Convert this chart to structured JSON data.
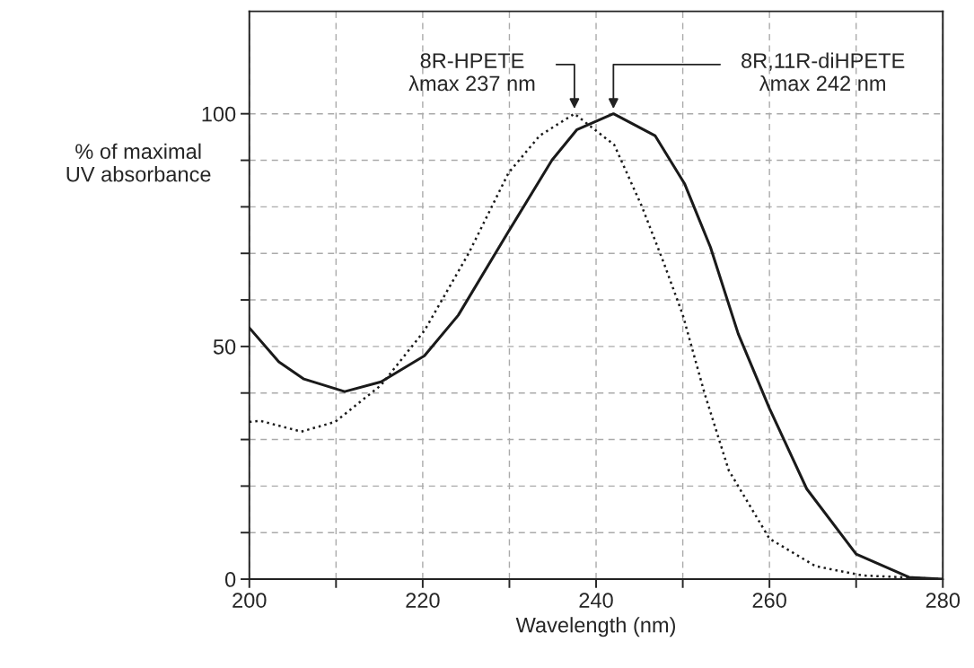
{
  "chart_data": {
    "type": "line",
    "xlabel": "Wavelength (nm)",
    "ylabel": "% of maximal\nUV absorbance",
    "xlim": [
      200,
      280
    ],
    "ylim": [
      0,
      122
    ],
    "xticks": [
      200,
      {
        "value": 210,
        "label": null
      },
      220,
      {
        "value": 230,
        "label": null
      },
      240,
      {
        "value": 250,
        "label": null
      },
      260,
      {
        "value": 270,
        "label": null
      },
      280
    ],
    "yticks": [
      0,
      {
        "value": 10,
        "label": null
      },
      {
        "value": 20,
        "label": null
      },
      {
        "value": 30,
        "label": null
      },
      {
        "value": 40,
        "label": null
      },
      50,
      {
        "value": 60,
        "label": null
      },
      {
        "value": 70,
        "label": null
      },
      {
        "value": 80,
        "label": null
      },
      {
        "value": 90,
        "label": null
      },
      100
    ],
    "grid": true,
    "legend": false,
    "series": [
      {
        "color": "#1a1a1a",
        "line_style": "solid",
        "x": [
          200,
          203.4,
          206.3,
          211,
          215.2,
          220.2,
          224.1,
          229.9,
          234.9,
          237.8,
          242,
          246.8,
          250.2,
          253.2,
          256.4,
          260,
          264.3,
          270,
          276.1,
          280
        ],
        "values": [
          54,
          46.7,
          43,
          40.3,
          42.4,
          48,
          56.7,
          74.7,
          90,
          96.6,
          100,
          95.3,
          85,
          71.3,
          52.7,
          36.7,
          19.4,
          5.4,
          0.4,
          0
        ]
      },
      {
        "color": "#1a1a1a",
        "line_style": "dotted",
        "x": [
          200,
          201.3,
          206,
          209.9,
          215.2,
          220.2,
          225.3,
          229.9,
          233.5,
          237.5,
          242.1,
          245.3,
          247.8,
          250,
          252.5,
          255.3,
          260,
          265.3,
          270.7,
          280
        ],
        "values": [
          33.8,
          34,
          31.7,
          33.8,
          41.7,
          53.4,
          70,
          87.3,
          95.3,
          100,
          93.3,
          80,
          68,
          56.8,
          40,
          23.4,
          8.7,
          2.8,
          0.8,
          0
        ]
      }
    ],
    "annotations": [
      {
        "text": "8R-HPETE\nλmax 237 nm",
        "x": 237.5,
        "y": 100
      },
      {
        "text": "8R,11R-diHPETE\nλmax 242 nm",
        "x": 242,
        "y": 100
      }
    ]
  }
}
